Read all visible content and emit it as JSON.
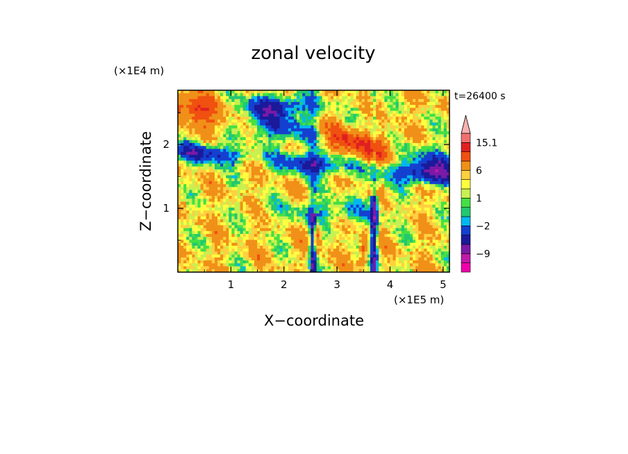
{
  "chart_data": {
    "type": "heatmap",
    "title": "zonal velocity",
    "time_label": "t=26400 s",
    "xlabel": "X−coordinate",
    "ylabel": "Z−coordinate",
    "x_scale_label": "(×1E5 m)",
    "y_scale_label": "(×1E4 m)",
    "xlim": [
      0,
      5.12
    ],
    "ylim": [
      0,
      2.85
    ],
    "x_ticks": [
      {
        "value": 1,
        "label": "1"
      },
      {
        "value": 2,
        "label": "2"
      },
      {
        "value": 3,
        "label": "3"
      },
      {
        "value": 4,
        "label": "4"
      },
      {
        "value": 5,
        "label": "5"
      }
    ],
    "y_ticks": [
      {
        "value": 1,
        "label": "1"
      },
      {
        "value": 2,
        "label": "2"
      }
    ],
    "colorbar": {
      "levels": [
        -15,
        -12,
        -9,
        -6,
        -3,
        -2,
        -1,
        0,
        1,
        2,
        3,
        6,
        9,
        12,
        15.1
      ],
      "colors": [
        "#ee00aa",
        "#c01aa8",
        "#7a1aa6",
        "#1a1a9a",
        "#1440d0",
        "#00b8f0",
        "#22c870",
        "#44e044",
        "#c8f050",
        "#ffff40",
        "#ffd040",
        "#f09018",
        "#f05010",
        "#e02020",
        "#f07070",
        "#f8b0b0"
      ],
      "labels": [
        {
          "value": -9,
          "label": "−9"
        },
        {
          "value": -2,
          "label": "−2"
        },
        {
          "value": 1,
          "label": "1"
        },
        {
          "value": 6,
          "label": "6"
        },
        {
          "value": 15.1,
          "label": "15.1"
        }
      ]
    },
    "grid": false
  }
}
